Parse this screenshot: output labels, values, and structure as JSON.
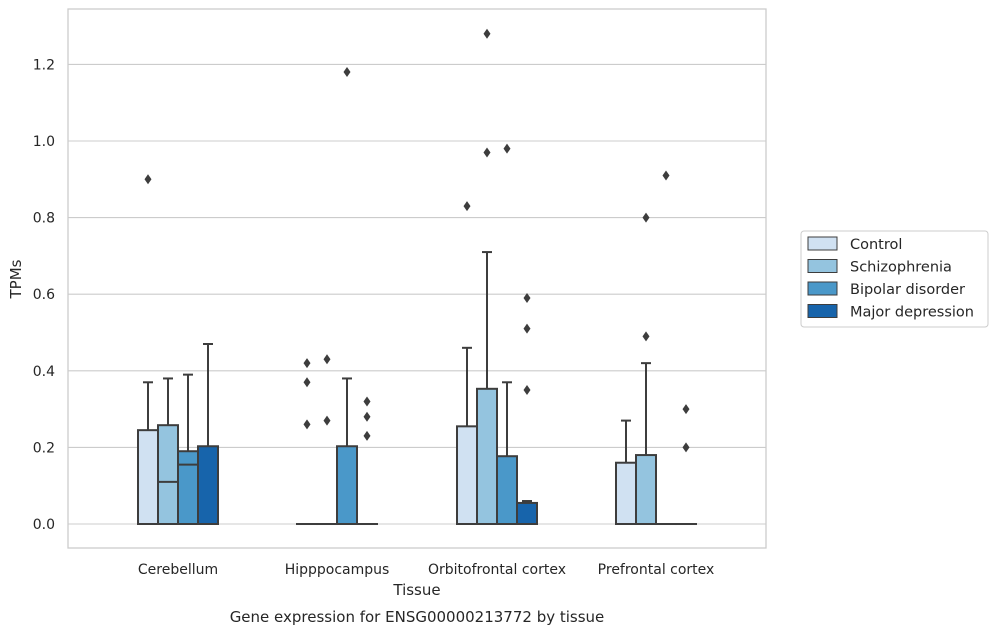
{
  "chart_data": {
    "type": "box",
    "xlabel": "Tissue",
    "ylabel": "TPMs",
    "caption": "Gene expression for ENSG00000213772 by tissue",
    "ylim": [
      -0.06,
      1.35
    ],
    "yticks": [
      "0.0",
      "0.2",
      "0.4",
      "0.6",
      "0.8",
      "1.0",
      "1.2"
    ],
    "categories": [
      "Cerebellum",
      "Hipppocampus",
      "Orbitofrontal cortex",
      "Prefrontal cortex"
    ],
    "grid": "horizontal",
    "legend_position": "right",
    "series": [
      {
        "name": "Control",
        "color": "#d0e1f2",
        "boxes": [
          {
            "q1": 0.0,
            "median": 0.0,
            "q3": 0.245,
            "whisker_low": 0.0,
            "whisker_high": 0.37,
            "outliers": [
              0.9
            ]
          },
          {
            "q1": 0.0,
            "median": 0.0,
            "q3": 0.0,
            "whisker_low": 0.0,
            "whisker_high": 0.0,
            "outliers": [
              0.26,
              0.37,
              0.42
            ]
          },
          {
            "q1": 0.0,
            "median": 0.0,
            "q3": 0.255,
            "whisker_low": 0.0,
            "whisker_high": 0.46,
            "outliers": [
              0.83
            ]
          },
          {
            "q1": 0.0,
            "median": 0.0,
            "q3": 0.16,
            "whisker_low": 0.0,
            "whisker_high": 0.27,
            "outliers": []
          }
        ]
      },
      {
        "name": "Schizophrenia",
        "color": "#94c4df",
        "boxes": [
          {
            "q1": 0.0,
            "median": 0.11,
            "q3": 0.258,
            "whisker_low": 0.0,
            "whisker_high": 0.38,
            "outliers": []
          },
          {
            "q1": 0.0,
            "median": 0.0,
            "q3": 0.0,
            "whisker_low": 0.0,
            "whisker_high": 0.0,
            "outliers": [
              0.27,
              0.43
            ]
          },
          {
            "q1": 0.0,
            "median": 0.0,
            "q3": 0.353,
            "whisker_low": 0.0,
            "whisker_high": 0.71,
            "outliers": [
              0.97,
              1.28
            ]
          },
          {
            "q1": 0.0,
            "median": 0.0,
            "q3": 0.18,
            "whisker_low": 0.0,
            "whisker_high": 0.42,
            "outliers": [
              0.49,
              0.8
            ]
          }
        ]
      },
      {
        "name": "Bipolar disorder",
        "color": "#4a98c9",
        "boxes": [
          {
            "q1": 0.0,
            "median": 0.155,
            "q3": 0.19,
            "whisker_low": 0.0,
            "whisker_high": 0.39,
            "outliers": []
          },
          {
            "q1": 0.0,
            "median": 0.0,
            "q3": 0.203,
            "whisker_low": 0.0,
            "whisker_high": 0.38,
            "outliers": [
              1.18
            ]
          },
          {
            "q1": 0.0,
            "median": 0.0,
            "q3": 0.177,
            "whisker_low": 0.0,
            "whisker_high": 0.37,
            "outliers": [
              0.98
            ]
          },
          {
            "q1": 0.0,
            "median": 0.0,
            "q3": 0.0,
            "whisker_low": 0.0,
            "whisker_high": 0.0,
            "outliers": [
              0.91
            ]
          }
        ]
      },
      {
        "name": "Major depression",
        "color": "#1764ab",
        "boxes": [
          {
            "q1": 0.0,
            "median": 0.0,
            "q3": 0.203,
            "whisker_low": 0.0,
            "whisker_high": 0.47,
            "outliers": []
          },
          {
            "q1": 0.0,
            "median": 0.0,
            "q3": 0.0,
            "whisker_low": 0.0,
            "whisker_high": 0.0,
            "outliers": [
              0.23,
              0.28,
              0.32
            ]
          },
          {
            "q1": 0.0,
            "median": 0.0,
            "q3": 0.055,
            "whisker_low": 0.0,
            "whisker_high": 0.06,
            "outliers": [
              0.35,
              0.51,
              0.59
            ]
          },
          {
            "q1": 0.0,
            "median": 0.0,
            "q3": 0.0,
            "whisker_low": 0.0,
            "whisker_high": 0.0,
            "outliers": [
              0.2,
              0.3
            ]
          }
        ]
      }
    ]
  }
}
